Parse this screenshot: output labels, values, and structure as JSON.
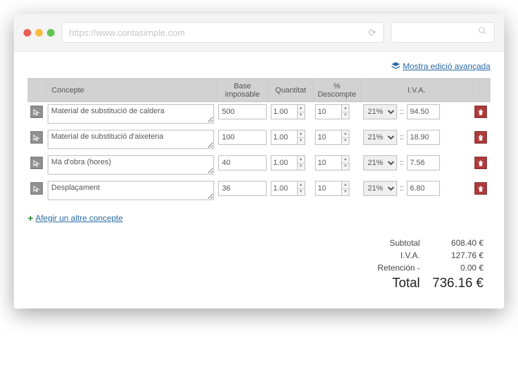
{
  "browser": {
    "url": "https://www.contasimple.com",
    "dots": [
      "#ee5e55",
      "#f7bc41",
      "#61c354"
    ]
  },
  "advanced_link": "Mostra edició avançada",
  "headers": {
    "concepte": "Concepte",
    "base": "Base imposable",
    "quantitat": "Quantitat",
    "descompte": "% Descompte",
    "iva": "I.V.A."
  },
  "iva_options": [
    "21%"
  ],
  "rows": [
    {
      "concepte": "Material de substitució de caldera",
      "base": "500",
      "qty": "1.00",
      "disc": "10",
      "iva_pct": "21%",
      "iva_val": "94.50"
    },
    {
      "concepte": "Material de substitució d'aixeteria",
      "base": "100",
      "qty": "1.00",
      "disc": "10",
      "iva_pct": "21%",
      "iva_val": "18.90"
    },
    {
      "concepte": "Mà d'obra (hores)",
      "base": "40",
      "qty": "1.00",
      "disc": "10",
      "iva_pct": "21%",
      "iva_val": "7.56"
    },
    {
      "concepte": "Desplaçament",
      "base": "36",
      "qty": "1.00",
      "disc": "10",
      "iva_pct": "21%",
      "iva_val": "6.80"
    }
  ],
  "add_link": "Afegir un altre concepte",
  "totals": {
    "subtotal_label": "Subtotal",
    "subtotal": "608.40 €",
    "iva_label": "I.V.A.",
    "iva": "127.76 €",
    "ret_label": "Retención -",
    "ret": "0.00 €",
    "total_label": "Total",
    "total": "736.16 €"
  }
}
